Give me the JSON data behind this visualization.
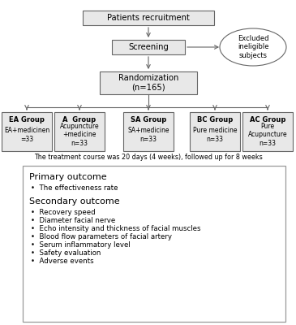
{
  "bg_color": "#ffffff",
  "box_facecolor": "#e8e8e8",
  "box_edgecolor": "#666666",
  "text_color": "#000000",
  "flowchart": {
    "recruitment_text": "Patients recruitment",
    "screening_text": "Screening",
    "excluded_text": "Excluded\nineligible\nsubjects",
    "randomization_text": "Randomization\n(n=165)",
    "groups": [
      {
        "title": "EA Group",
        "body": "EA+medicinen\n=33"
      },
      {
        "title": "A  Group",
        "body": "Acupuncture\n+medicine\nn=33"
      },
      {
        "title": "SA Group",
        "body": "SA+medicine\nn=33"
      },
      {
        "title": "BC Group",
        "body": "Pure medicine\nn=33"
      },
      {
        "title": "AC Group",
        "body": "Pure\nAcupuncture\nn=33"
      }
    ],
    "treatment_text": "The treatment course was 20 days (4 weeks), followed up for 8 weeks",
    "outcome_box": {
      "primary_title": "Primary outcome",
      "primary_items": [
        "The effectiveness rate"
      ],
      "secondary_title": "Secondary outcome",
      "secondary_items": [
        "Recovery speed",
        "Diameter facial nerve",
        "Echo intensity and thickness of facial muscles",
        "Blood flow parameters of facial artery",
        "Serum inflammatory level",
        "Safety evaluation",
        "Adverse events"
      ]
    }
  }
}
